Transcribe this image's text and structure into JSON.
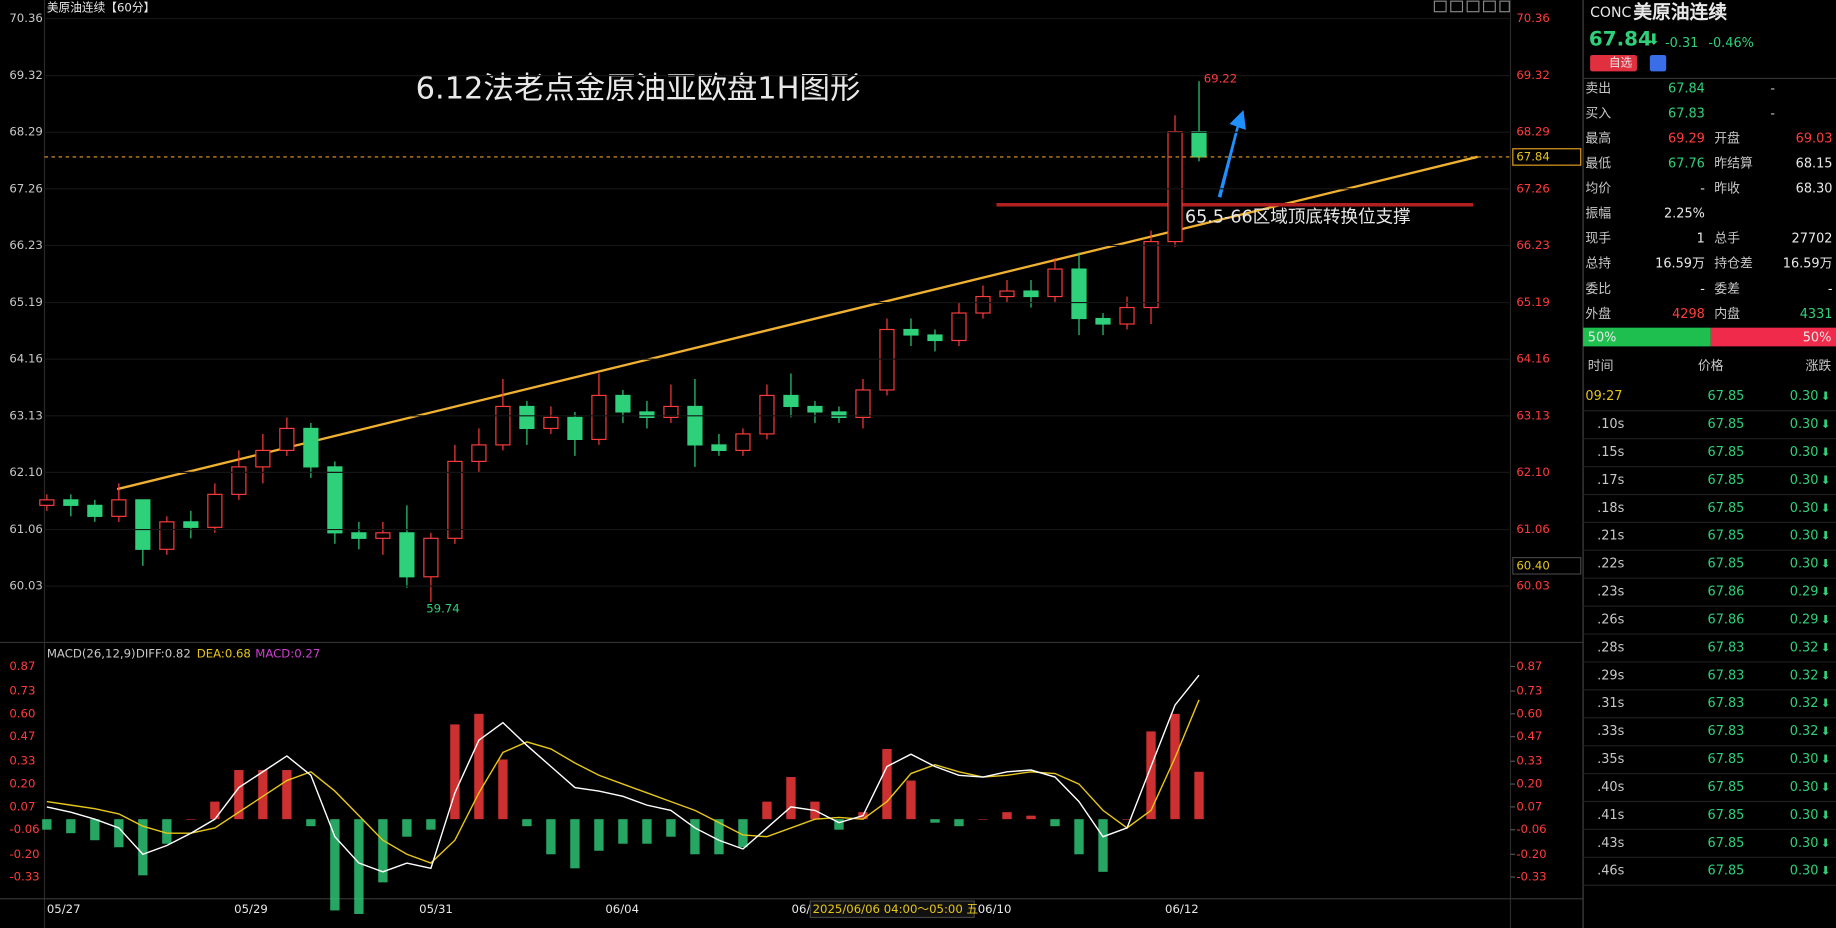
{
  "chart_data": {
    "type": "candlestick",
    "title": "美原油连续【60分】",
    "annotation": "6.12法老点金原油亚欧盘1H图形",
    "support_note": "65.5-66区域顶底转换位支撑",
    "ylim": [
      59.09,
      70.59
    ],
    "yticks": [
      70.36,
      69.32,
      68.29,
      67.26,
      66.23,
      65.19,
      64.16,
      63.13,
      {
        "value": 62.1,
        "label": "62.10"
      },
      61.06,
      60.03
    ],
    "dates": [
      "05/27",
      "05/29",
      "05/31",
      "06/04",
      "06/06",
      "06/10",
      "06/12"
    ],
    "crosshair_time": "2025/06/06 04:00～05:00 五",
    "crosshair_price": {
      "value": 60.4,
      "label": "60.40"
    },
    "last_price": 67.84,
    "high_marker": 69.22,
    "low_marker": 59.74,
    "candles": [
      [
        61.5,
        61.7,
        61.4,
        61.6
      ],
      [
        61.6,
        61.7,
        61.3,
        61.5
      ],
      [
        61.5,
        61.6,
        61.2,
        61.3
      ],
      [
        61.3,
        61.9,
        61.2,
        61.6
      ],
      [
        61.6,
        61.6,
        60.4,
        60.7
      ],
      [
        60.7,
        61.3,
        60.6,
        61.2
      ],
      [
        61.2,
        61.4,
        60.9,
        61.1
      ],
      [
        61.1,
        61.9,
        61.0,
        61.7
      ],
      [
        61.7,
        62.5,
        61.6,
        62.2
      ],
      [
        62.2,
        62.8,
        61.9,
        62.5
      ],
      [
        62.5,
        63.1,
        62.4,
        62.9
      ],
      [
        62.9,
        63.0,
        62.0,
        62.2
      ],
      [
        62.2,
        62.3,
        60.8,
        61.0
      ],
      [
        61.0,
        61.2,
        60.7,
        60.9
      ],
      [
        60.9,
        61.2,
        60.6,
        61.0
      ],
      [
        61.0,
        61.5,
        60.0,
        60.2
      ],
      [
        60.2,
        61.0,
        59.74,
        60.9
      ],
      [
        60.9,
        62.6,
        60.8,
        62.3
      ],
      [
        62.3,
        62.9,
        62.1,
        62.6
      ],
      [
        62.6,
        63.8,
        62.5,
        63.3
      ],
      [
        63.3,
        63.4,
        62.6,
        62.9
      ],
      [
        62.9,
        63.3,
        62.8,
        63.1
      ],
      [
        63.1,
        63.2,
        62.4,
        62.7
      ],
      [
        62.7,
        63.9,
        62.6,
        63.5
      ],
      [
        63.5,
        63.6,
        63.0,
        63.2
      ],
      [
        63.2,
        63.4,
        62.9,
        63.1
      ],
      [
        63.1,
        63.7,
        63.0,
        63.3
      ],
      [
        63.3,
        63.8,
        62.2,
        62.6
      ],
      [
        62.6,
        62.8,
        62.4,
        62.5
      ],
      [
        62.5,
        62.9,
        62.4,
        62.8
      ],
      [
        62.8,
        63.7,
        62.7,
        63.5
      ],
      [
        63.5,
        63.9,
        63.1,
        63.3
      ],
      [
        63.3,
        63.4,
        63.0,
        63.2
      ],
      [
        63.2,
        63.3,
        63.0,
        63.1
      ],
      [
        63.1,
        63.8,
        62.9,
        63.6
      ],
      [
        63.6,
        64.9,
        63.5,
        64.7
      ],
      [
        64.7,
        64.9,
        64.4,
        64.6
      ],
      [
        64.6,
        64.7,
        64.3,
        64.5
      ],
      [
        64.5,
        65.2,
        64.4,
        65.0
      ],
      [
        65.0,
        65.5,
        64.9,
        65.3
      ],
      [
        65.3,
        65.6,
        65.2,
        65.4
      ],
      [
        65.4,
        65.6,
        65.1,
        65.3
      ],
      [
        65.3,
        66.0,
        65.2,
        65.8
      ],
      [
        65.8,
        66.1,
        64.6,
        64.9
      ],
      [
        64.9,
        65.0,
        64.6,
        64.8
      ],
      [
        64.8,
        65.3,
        64.7,
        65.1
      ],
      [
        65.1,
        66.5,
        64.8,
        66.3
      ],
      [
        66.3,
        68.6,
        66.2,
        68.3
      ],
      [
        68.3,
        69.22,
        67.76,
        67.84
      ]
    ],
    "macd": {
      "legend": "MACD(26,12,9)",
      "diff_label": "DIFF:0.82",
      "dea_label": "DEA:0.68",
      "macd_label": "MACD:0.27",
      "ylim": [
        -0.48,
        0.98
      ],
      "yticks": [
        0.87,
        0.73,
        {
          "value": 0.6,
          "label": "0.60"
        },
        0.47,
        0.33,
        {
          "value": 0.2,
          "label": "0.20"
        },
        0.07,
        -0.06,
        {
          "value": -0.2,
          "label": "-0.20"
        },
        -0.33
      ],
      "diff": [
        0.07,
        0.04,
        0.0,
        -0.05,
        -0.2,
        -0.15,
        -0.08,
        0.0,
        0.18,
        0.27,
        0.36,
        0.25,
        -0.1,
        -0.25,
        -0.3,
        -0.25,
        -0.28,
        0.15,
        0.45,
        0.55,
        0.42,
        0.3,
        0.18,
        0.16,
        0.13,
        0.08,
        0.05,
        -0.05,
        -0.12,
        -0.17,
        -0.05,
        0.07,
        0.05,
        -0.02,
        0.02,
        0.3,
        0.37,
        0.3,
        0.25,
        0.24,
        0.27,
        0.28,
        0.24,
        0.1,
        -0.1,
        -0.05,
        0.3,
        0.65,
        0.82
      ],
      "dea": [
        0.1,
        0.08,
        0.06,
        0.03,
        -0.04,
        -0.08,
        -0.08,
        -0.05,
        0.04,
        0.13,
        0.22,
        0.27,
        0.16,
        0.02,
        -0.12,
        -0.2,
        -0.25,
        -0.12,
        0.15,
        0.38,
        0.44,
        0.4,
        0.32,
        0.25,
        0.2,
        0.15,
        0.1,
        0.05,
        -0.02,
        -0.09,
        -0.1,
        -0.05,
        0.0,
        0.01,
        0.0,
        0.1,
        0.26,
        0.31,
        0.27,
        0.24,
        0.25,
        0.27,
        0.26,
        0.2,
        0.05,
        -0.05,
        0.05,
        0.35,
        0.68
      ],
      "hist": [
        -0.06,
        -0.08,
        -0.12,
        -0.16,
        -0.32,
        -0.14,
        0,
        0.1,
        0.28,
        0.28,
        0.28,
        -0.04,
        -0.52,
        -0.54,
        -0.36,
        -0.1,
        -0.06,
        0.54,
        0.6,
        0.34,
        -0.04,
        -0.2,
        -0.28,
        -0.18,
        -0.14,
        -0.14,
        -0.1,
        -0.2,
        -0.2,
        -0.16,
        0.1,
        0.24,
        0.1,
        -0.06,
        0.04,
        0.4,
        0.22,
        -0.02,
        -0.04,
        0,
        0.04,
        0.02,
        -0.04,
        -0.2,
        -0.3,
        0,
        0.5,
        0.6,
        0.27
      ]
    }
  },
  "quote": {
    "code": "CONC",
    "name": "美原油连续",
    "price": "67.84",
    "change": "-0.31",
    "change_pct": "-0.46%",
    "watch": "自选",
    "rows": [
      [
        "卖出",
        "67.84",
        "-"
      ],
      [
        "买入",
        "67.83",
        "-"
      ],
      [
        "最高",
        "69.29",
        "开盘",
        "69.03"
      ],
      [
        "最低",
        "67.76",
        "昨结算",
        "68.15"
      ],
      [
        "均价",
        "-",
        "昨收",
        "68.30"
      ],
      [
        "振幅",
        "2.25%"
      ],
      [
        "现手",
        "1",
        "总手",
        "27702"
      ],
      [
        "总持",
        "16.59万",
        "持仓差",
        "16.59万"
      ],
      [
        "委比",
        "-",
        "委差",
        "-"
      ],
      [
        "外盘",
        "4298",
        "内盘",
        "4331"
      ]
    ],
    "buy_ratio": "50%",
    "sell_ratio": "50%",
    "tick_header": [
      "时间",
      "价格",
      "涨跌"
    ],
    "ticks": [
      [
        "09:27",
        "67.85",
        "0.30"
      ],
      [
        ".10s",
        "67.85",
        "0.30"
      ],
      [
        ".15s",
        "67.85",
        "0.30"
      ],
      [
        ".17s",
        "67.85",
        "0.30"
      ],
      [
        ".18s",
        "67.85",
        "0.30"
      ],
      [
        ".21s",
        "67.85",
        "0.30"
      ],
      [
        ".22s",
        "67.85",
        "0.30"
      ],
      [
        ".23s",
        "67.86",
        "0.29"
      ],
      [
        ".26s",
        "67.86",
        "0.29"
      ],
      [
        ".28s",
        "67.83",
        "0.32"
      ],
      [
        ".29s",
        "67.83",
        "0.32"
      ],
      [
        ".31s",
        "67.83",
        "0.32"
      ],
      [
        ".33s",
        "67.83",
        "0.32"
      ],
      [
        ".35s",
        "67.85",
        "0.30"
      ],
      [
        ".40s",
        "67.85",
        "0.30"
      ],
      [
        ".41s",
        "67.85",
        "0.30"
      ],
      [
        ".43s",
        "67.85",
        "0.30"
      ],
      [
        ".46s",
        "67.85",
        "0.30"
      ]
    ]
  }
}
